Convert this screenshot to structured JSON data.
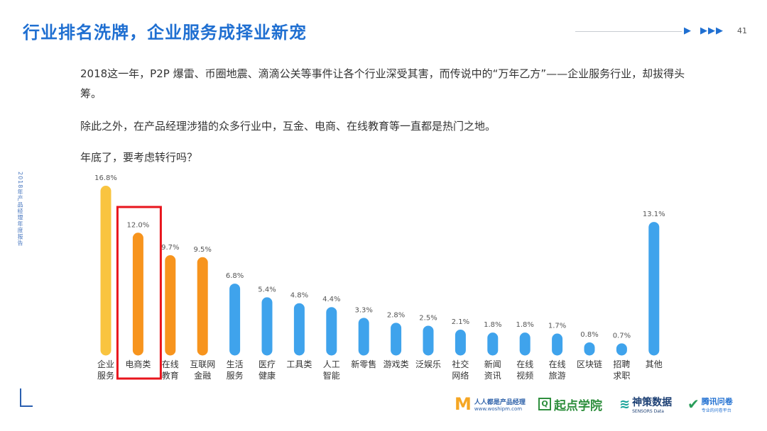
{
  "header": {
    "title": "行业排名洗牌，企业服务成择业新宠",
    "arrows": [
      "▶",
      "▶▶▶"
    ],
    "page_number": "41"
  },
  "paragraphs": {
    "p1": "2018这一年，P2P 爆雷、币圈地震、滴滴公关等事件让各个行业深受其害，而传说中的“万年乙方”——企业服务行业，却拔得头筹。",
    "p2": "除此之外，在产品经理涉猎的众多行业中，互金、电商、在线教育等一直都是热门之地。",
    "p3": "年底了，要考虑转行吗？"
  },
  "side_text": "2018年产品经理年度报告",
  "colors": {
    "title": "#1f6fd1",
    "bar_top": "#f9c440",
    "bar_orange": "#f7941d",
    "bar_blue": "#3fa3ec",
    "highlight_box": "#e8141c"
  },
  "chart_data": {
    "type": "bar",
    "title": "",
    "xlabel": "",
    "ylabel": "",
    "ylim": [
      0,
      17.5
    ],
    "grid": false,
    "categories": [
      [
        "企业",
        "服务"
      ],
      [
        "电商类"
      ],
      [
        "在线",
        "教育"
      ],
      [
        "互联网",
        "金融"
      ],
      [
        "生活",
        "服务"
      ],
      [
        "医疗",
        "健康"
      ],
      [
        "工具类"
      ],
      [
        "人工",
        "智能"
      ],
      [
        "新零售"
      ],
      [
        "游戏类"
      ],
      [
        "泛娱乐"
      ],
      [
        "社交",
        "网络"
      ],
      [
        "新闻",
        "资讯"
      ],
      [
        "在线",
        "视频"
      ],
      [
        "在线",
        "旅游"
      ],
      [
        "区块链"
      ],
      [
        "招聘",
        "求职"
      ],
      [
        "其他"
      ]
    ],
    "values": [
      16.8,
      12.0,
      9.7,
      9.5,
      6.8,
      5.4,
      4.8,
      4.4,
      3.3,
      2.8,
      2.5,
      2.1,
      1.8,
      1.8,
      1.7,
      0.8,
      0.7,
      13.1
    ],
    "value_labels": [
      "16.8%",
      "12.0%",
      "9.7%",
      "9.5%",
      "6.8%",
      "5.4%",
      "4.8%",
      "4.4%",
      "3.3%",
      "2.8%",
      "2.5%",
      "2.1%",
      "1.8%",
      "1.8%",
      "1.7%",
      "0.8%",
      "0.7%",
      "13.1%"
    ],
    "bar_colors": [
      "yellow",
      "orange",
      "orange",
      "orange",
      "blue",
      "blue",
      "blue",
      "blue",
      "blue",
      "blue",
      "blue",
      "blue",
      "blue",
      "blue",
      "blue",
      "blue",
      "blue",
      "blue"
    ],
    "highlighted_category": "电商类"
  },
  "footer": {
    "logos": [
      {
        "icon": "m-logo-icon",
        "name": "人人都是产品经理",
        "sub": "www.woshipm.com"
      },
      {
        "icon": "q-logo-icon",
        "name": "起点学院"
      },
      {
        "icon": "sensors-logo-icon",
        "name": "神策数据",
        "sub": "SENSORS Data"
      },
      {
        "icon": "check-logo-icon",
        "name": "腾讯问卷",
        "sub": "专业的问卷平台"
      }
    ]
  }
}
